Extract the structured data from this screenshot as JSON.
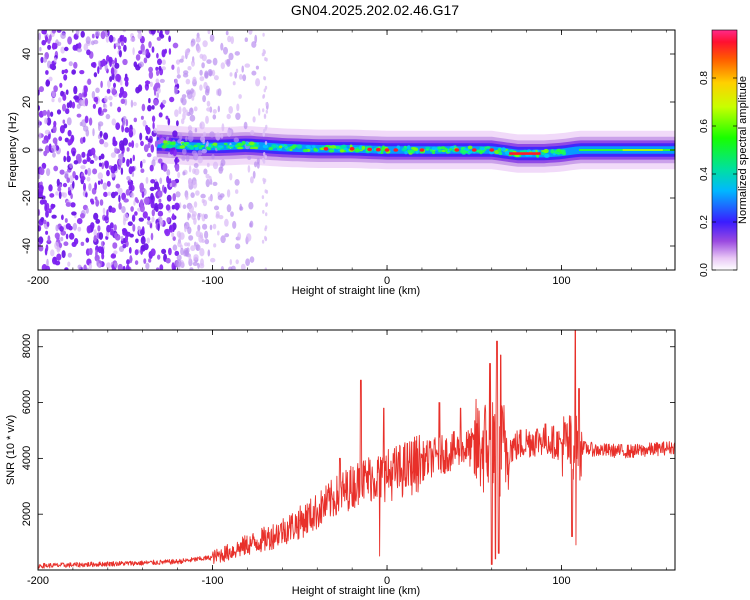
{
  "chart_data": [
    {
      "type": "heatmap",
      "title": "GN04.2025.202.02.46.G17",
      "xlabel": "Height of straight line (km)",
      "ylabel": "Frequency (Hz)",
      "xlim": [
        -200,
        165
      ],
      "ylim": [
        -50,
        50
      ],
      "x_ticks": [
        "-200",
        "-100",
        "0",
        "100"
      ],
      "y_ticks": [
        "-40",
        "-20",
        "0",
        "20",
        "40"
      ],
      "colorbar": {
        "label": "Normalized spectral amplitude",
        "range": [
          0,
          1
        ],
        "ticks": [
          "0.0",
          "0.2",
          "0.4",
          "0.6",
          "0.8"
        ]
      },
      "ridge": {
        "x": [
          -130,
          -110,
          -95,
          -80,
          -60,
          -40,
          -20,
          0,
          20,
          40,
          60,
          75,
          90,
          100,
          110,
          130,
          165
        ],
        "freq": [
          2.5,
          1.5,
          1.5,
          2,
          1,
          0.5,
          0.5,
          0,
          0,
          0,
          0,
          -1.5,
          -1.5,
          -1,
          0,
          0,
          0
        ]
      }
    },
    {
      "type": "line",
      "xlabel": "Height of straight line (km)",
      "ylabel": "SNR (10 * v/v)",
      "xlim": [
        -200,
        165
      ],
      "ylim": [
        0,
        8600
      ],
      "x_ticks": [
        "-200",
        "-100",
        "0",
        "100"
      ],
      "y_ticks": [
        "2000",
        "4000",
        "6000",
        "8000"
      ],
      "series": [
        {
          "color": "#e8302a",
          "x": [
            -200,
            -180,
            -160,
            -140,
            -120,
            -100,
            -90,
            -80,
            -70,
            -60,
            -50,
            -40,
            -30,
            -20,
            -10,
            0,
            10,
            20,
            30,
            40,
            50,
            60,
            70,
            80,
            90,
            100,
            110,
            120,
            140,
            165
          ],
          "y": [
            150,
            180,
            220,
            250,
            300,
            450,
            650,
            900,
            1100,
            1400,
            1700,
            2100,
            2600,
            3000,
            3300,
            3400,
            3600,
            3900,
            4100,
            4300,
            4400,
            4400,
            4350,
            4600,
            4700,
            4500,
            4400,
            4300,
            4250,
            4400
          ]
        }
      ]
    }
  ]
}
